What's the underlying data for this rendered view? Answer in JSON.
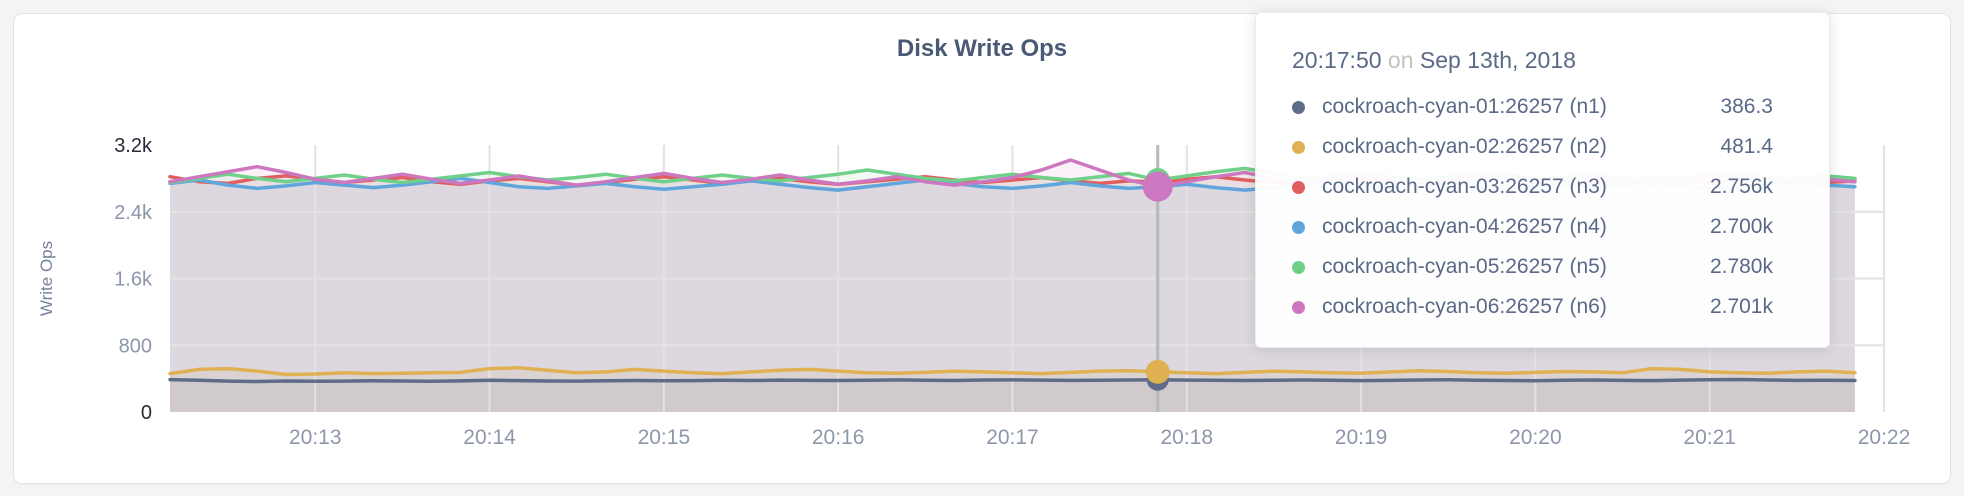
{
  "card": {
    "title": "Disk Write Ops"
  },
  "colors": {
    "grid": "#e3e3e3",
    "hover_line": "#b3b7bf",
    "tick_normal": "#8d97ab",
    "tick_minmax": "#262b36",
    "title": "#4a5a75"
  },
  "chart_data": {
    "type": "line",
    "title": "Disk Write Ops",
    "xlabel": "",
    "ylabel": "Write Ops",
    "ylim": [
      0,
      3200
    ],
    "grid": true,
    "legend_position": "tooltip-overlay",
    "y_ticks": [
      {
        "label": "3.2k",
        "value": 3200,
        "minmax": true
      },
      {
        "label": "2.4k",
        "value": 2400,
        "minmax": false
      },
      {
        "label": "1.6k",
        "value": 1600,
        "minmax": false
      },
      {
        "label": "800",
        "value": 800,
        "minmax": false
      },
      {
        "label": "0",
        "value": 0,
        "minmax": true
      }
    ],
    "x_axis_span_seconds": 590,
    "x_step_seconds": 10,
    "x_start_label": "20:12:10",
    "x_ticks": [
      {
        "label": "20:13",
        "offset_s": 50
      },
      {
        "label": "20:14",
        "offset_s": 110
      },
      {
        "label": "20:15",
        "offset_s": 170
      },
      {
        "label": "20:16",
        "offset_s": 230
      },
      {
        "label": "20:17",
        "offset_s": 290
      },
      {
        "label": "20:18",
        "offset_s": 350
      },
      {
        "label": "20:19",
        "offset_s": 410
      },
      {
        "label": "20:20",
        "offset_s": 470
      },
      {
        "label": "20:21",
        "offset_s": 530
      },
      {
        "label": "20:22",
        "offset_s": 590
      }
    ],
    "hover_index": 34,
    "series": [
      {
        "name": "cockroach-cyan-01:26257 (n1)",
        "color": "#5f6c87",
        "values": [
          388,
          380,
          370,
          365,
          372,
          368,
          370,
          374,
          371,
          369,
          373,
          380,
          376,
          372,
          370,
          375,
          378,
          374,
          376,
          380,
          378,
          382,
          379,
          377,
          381,
          385,
          380,
          378,
          383,
          385,
          382,
          379,
          381,
          384,
          386.3,
          382,
          380,
          377,
          381,
          384,
          380,
          376,
          379,
          383,
          386,
          381,
          378,
          375,
          380,
          384,
          379,
          376,
          382,
          386,
          390,
          384,
          379,
          381,
          378
        ]
      },
      {
        "name": "cockroach-cyan-02:26257 (n2)",
        "color": "#e0b153",
        "values": [
          460,
          510,
          520,
          490,
          450,
          455,
          470,
          460,
          465,
          470,
          475,
          520,
          530,
          500,
          470,
          480,
          510,
          490,
          470,
          460,
          480,
          500,
          510,
          490,
          470,
          465,
          475,
          490,
          480,
          470,
          460,
          475,
          490,
          495,
          481.4,
          470,
          460,
          475,
          490,
          480,
          470,
          465,
          480,
          495,
          485,
          470,
          465,
          475,
          485,
          480,
          470,
          520,
          510,
          480,
          470,
          465,
          480,
          490,
          470
        ]
      },
      {
        "name": "cockroach-cyan-03:26257 (n3)",
        "color": "#e05f5e",
        "values": [
          2820,
          2760,
          2740,
          2800,
          2830,
          2790,
          2750,
          2780,
          2810,
          2760,
          2730,
          2770,
          2800,
          2760,
          2720,
          2750,
          2790,
          2820,
          2780,
          2740,
          2770,
          2800,
          2760,
          2730,
          2760,
          2790,
          2820,
          2780,
          2750,
          2780,
          2810,
          2770,
          2740,
          2770,
          2756,
          2790,
          2820,
          2780,
          2750,
          2730,
          2760,
          2790,
          2760,
          2740,
          2770,
          2800,
          2840,
          2800,
          2760,
          2740,
          2770,
          2800,
          2770,
          2750,
          2780,
          2810,
          2780,
          2750,
          2770
        ]
      },
      {
        "name": "cockroach-cyan-04:26257 (n4)",
        "color": "#60a5dc",
        "values": [
          2740,
          2780,
          2720,
          2680,
          2710,
          2750,
          2720,
          2690,
          2720,
          2760,
          2800,
          2750,
          2700,
          2680,
          2710,
          2740,
          2700,
          2670,
          2700,
          2730,
          2770,
          2730,
          2690,
          2660,
          2700,
          2740,
          2780,
          2740,
          2700,
          2680,
          2710,
          2750,
          2710,
          2680,
          2700,
          2730,
          2690,
          2660,
          2690,
          2720,
          2760,
          2720,
          2690,
          2710,
          2740,
          2700,
          2670,
          2700,
          2730,
          2690,
          2720,
          2750,
          2710,
          2680,
          2700,
          2730,
          2760,
          2720,
          2700
        ]
      },
      {
        "name": "cockroach-cyan-05:26257 (n5)",
        "color": "#70d089",
        "values": [
          2750,
          2800,
          2850,
          2800,
          2760,
          2800,
          2840,
          2790,
          2750,
          2790,
          2830,
          2870,
          2820,
          2780,
          2810,
          2850,
          2800,
          2760,
          2800,
          2840,
          2800,
          2770,
          2810,
          2850,
          2900,
          2850,
          2800,
          2770,
          2810,
          2850,
          2810,
          2780,
          2820,
          2860,
          2780,
          2830,
          2880,
          2920,
          2860,
          2800,
          2830,
          2870,
          2820,
          2790,
          2820,
          2860,
          2810,
          2780,
          2820,
          2850,
          2800,
          2780,
          2810,
          2840,
          2800,
          2770,
          2800,
          2830,
          2800
        ]
      },
      {
        "name": "cockroach-cyan-06:26257 (n6)",
        "color": "#cc77c0",
        "values": [
          2760,
          2820,
          2880,
          2940,
          2870,
          2790,
          2750,
          2800,
          2850,
          2790,
          2740,
          2780,
          2830,
          2770,
          2720,
          2760,
          2810,
          2860,
          2800,
          2750,
          2790,
          2840,
          2780,
          2730,
          2770,
          2820,
          2760,
          2720,
          2760,
          2810,
          2900,
          3020,
          2900,
          2780,
          2701,
          2760,
          2820,
          2870,
          2800,
          2750,
          2790,
          2830,
          2780,
          2740,
          2780,
          2820,
          2770,
          2730,
          2770,
          2810,
          2760,
          2730,
          2770,
          2820,
          2860,
          2800,
          2760,
          2790,
          2760
        ]
      }
    ]
  },
  "tooltip": {
    "time": "20:17:50",
    "separator": "on",
    "date": "Sep 13th, 2018",
    "rows": [
      {
        "label": "cockroach-cyan-01:26257 (n1)",
        "value": "386.3",
        "color": "#5f6c87"
      },
      {
        "label": "cockroach-cyan-02:26257 (n2)",
        "value": "481.4",
        "color": "#e0b153"
      },
      {
        "label": "cockroach-cyan-03:26257 (n3)",
        "value": "2.756k",
        "color": "#e05f5e"
      },
      {
        "label": "cockroach-cyan-04:26257 (n4)",
        "value": "2.700k",
        "color": "#60a5dc"
      },
      {
        "label": "cockroach-cyan-05:26257 (n5)",
        "value": "2.780k",
        "color": "#70d089"
      },
      {
        "label": "cockroach-cyan-06:26257 (n6)",
        "value": "2.701k",
        "color": "#cc77c0"
      }
    ]
  }
}
